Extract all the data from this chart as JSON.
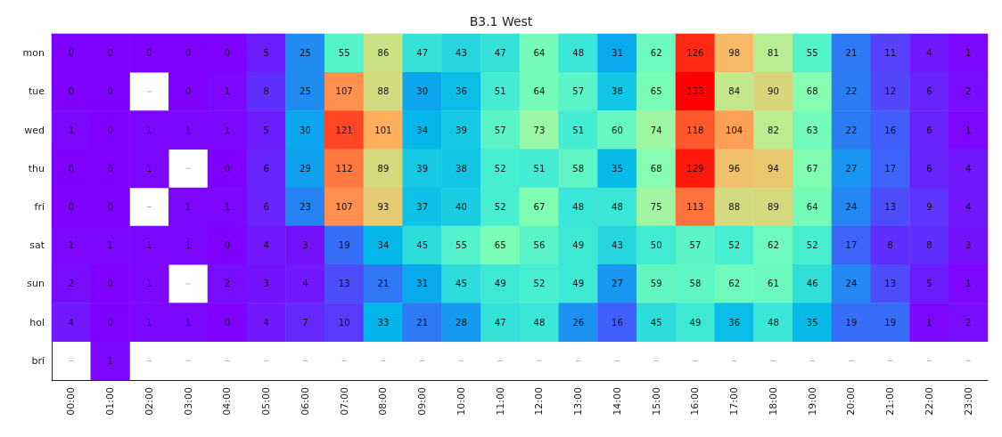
{
  "chart_data": {
    "type": "heatmap",
    "title": "B3.1 West",
    "categories": [
      "00:00",
      "01:00",
      "02:00",
      "03:00",
      "04:00",
      "05:00",
      "06:00",
      "07:00",
      "08:00",
      "09:00",
      "10:00",
      "11:00",
      "12:00",
      "13:00",
      "14:00",
      "15:00",
      "16:00",
      "17:00",
      "18:00",
      "19:00",
      "20:00",
      "21:00",
      "22:00",
      "23:00"
    ],
    "y_categories": [
      "mon",
      "tue",
      "wed",
      "thu",
      "fri",
      "sat",
      "sun",
      "hol",
      "bri"
    ],
    "cells": [
      [
        0,
        0,
        0,
        0,
        0,
        5,
        25,
        55,
        86,
        47,
        43,
        47,
        64,
        48,
        31,
        62,
        126,
        98,
        81,
        55,
        21,
        11,
        4,
        1
      ],
      [
        0,
        0,
        null,
        0,
        1,
        8,
        25,
        107,
        88,
        30,
        36,
        51,
        64,
        57,
        38,
        65,
        133,
        84,
        90,
        68,
        22,
        12,
        6,
        2
      ],
      [
        1,
        0,
        1,
        1,
        1,
        5,
        30,
        121,
        101,
        34,
        39,
        57,
        73,
        51,
        60,
        74,
        118,
        104,
        82,
        63,
        22,
        16,
        6,
        1
      ],
      [
        0,
        0,
        1,
        null,
        0,
        6,
        29,
        112,
        89,
        39,
        38,
        52,
        51,
        58,
        35,
        68,
        129,
        96,
        94,
        67,
        27,
        17,
        6,
        4
      ],
      [
        0,
        0,
        null,
        1,
        1,
        6,
        23,
        107,
        93,
        37,
        40,
        52,
        67,
        48,
        48,
        75,
        113,
        88,
        89,
        64,
        24,
        13,
        9,
        4
      ],
      [
        1,
        1,
        1,
        1,
        0,
        4,
        3,
        19,
        34,
        45,
        55,
        65,
        56,
        49,
        43,
        50,
        57,
        52,
        62,
        52,
        17,
        8,
        8,
        3
      ],
      [
        2,
        0,
        1,
        null,
        2,
        3,
        4,
        13,
        21,
        31,
        45,
        49,
        52,
        49,
        27,
        59,
        58,
        62,
        61,
        46,
        24,
        13,
        5,
        1
      ],
      [
        4,
        0,
        1,
        1,
        0,
        4,
        7,
        10,
        33,
        21,
        28,
        47,
        48,
        26,
        16,
        45,
        49,
        36,
        48,
        35,
        19,
        19,
        1,
        2
      ],
      [
        null,
        1,
        null,
        null,
        null,
        null,
        null,
        null,
        null,
        null,
        null,
        null,
        null,
        null,
        null,
        null,
        null,
        null,
        null,
        null,
        null,
        null,
        null,
        null
      ]
    ],
    "data_labels": true
  }
}
